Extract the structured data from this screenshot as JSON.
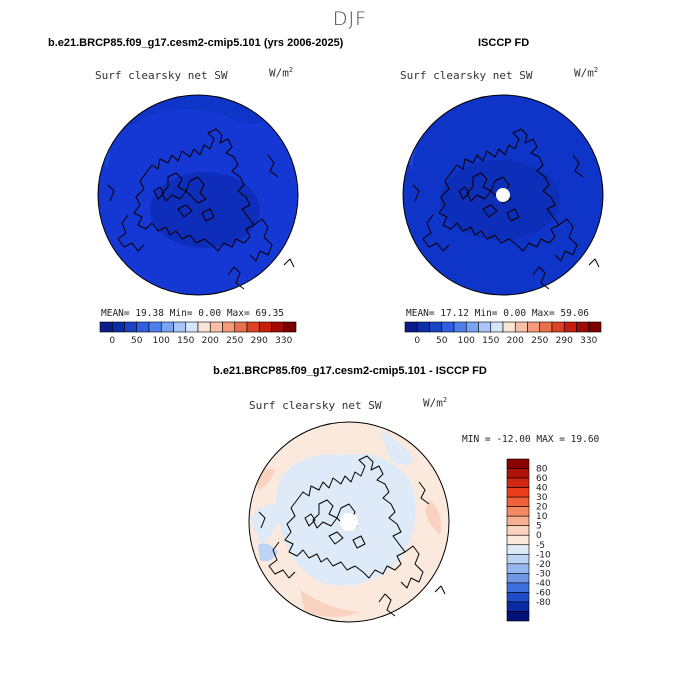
{
  "season": "DJF",
  "units_label": "W/m",
  "units_exp": "2",
  "panels": {
    "model": {
      "title": "b.e21.BRCP85.f09_g17.cesm2-cmip5.101 (yrs 2006-2025)",
      "subtitle": "Surf clearsky net SW",
      "stats": "MEAN=  19.38  Min=    0.00  Max=  69.35"
    },
    "obs": {
      "title": "ISCCP FD",
      "subtitle": "Surf clearsky net SW",
      "stats": "MEAN=  17.12  Min=    0.00  Max=  59.06"
    },
    "diff": {
      "title": "b.e21.BRCP85.f09_g17.cesm2-cmip5.101 - ISCCP FD",
      "subtitle": "Surf clearsky net SW",
      "stats": "MIN = -12.00  MAX =  19.60"
    }
  },
  "chart_data": [
    {
      "type": "heatmap",
      "title": "b.e21.BRCP85.f09_g17.cesm2-cmip5.101 (yrs 2006-2025)",
      "subtitle": "Surf clearsky net SW",
      "units": "W/m2",
      "projection": "polar stereographic (north)",
      "mean": 19.38,
      "min": 0.0,
      "max": 69.35,
      "colorbar_ticks": [
        "0",
        "50",
        "100",
        "150",
        "200",
        "250",
        "290",
        "330"
      ],
      "colorbar_colors": [
        "#0b1c8a",
        "#0b2ea8",
        "#1a43c6",
        "#2f5ee0",
        "#4f7fed",
        "#7aa3f3",
        "#a8c6f8",
        "#d5e6fb",
        "#fbe3d5",
        "#f8c0a6",
        "#f29a7a",
        "#ea6f4e",
        "#de4326",
        "#c61e0c",
        "#a10b05",
        "#7a0000"
      ],
      "dominant_color": "#0f34c8"
    },
    {
      "type": "heatmap",
      "title": "ISCCP FD",
      "subtitle": "Surf clearsky net SW",
      "units": "W/m2",
      "projection": "polar stereographic (north)",
      "mean": 17.12,
      "min": 0.0,
      "max": 59.06,
      "colorbar_ticks": [
        "0",
        "50",
        "100",
        "150",
        "200",
        "250",
        "290",
        "330"
      ],
      "dominant_color": "#0f34c8",
      "missing_at_pole": true
    },
    {
      "type": "heatmap",
      "title": "b.e21.BRCP85.f09_g17.cesm2-cmip5.101 - ISCCP FD",
      "subtitle": "Surf clearsky net SW",
      "units": "W/m2",
      "projection": "polar stereographic (north)",
      "min": -12.0,
      "max": 19.6,
      "colorbar_orientation": "vertical",
      "colorbar_ticks": [
        "80",
        "60",
        "40",
        "30",
        "20",
        "10",
        "5",
        "0",
        "-5",
        "-10",
        "-20",
        "-30",
        "-40",
        "-60",
        "-80"
      ],
      "colorbar_colors": [
        "#8b0000",
        "#b01106",
        "#d22712",
        "#ea3d1c",
        "#f3613a",
        "#f58a62",
        "#f7b091",
        "#f9d3bf",
        "#fbe9dd",
        "#deeaf8",
        "#bcd3f3",
        "#96b7ee",
        "#6e97e6",
        "#3f6fde",
        "#1f4cc9",
        "#0a2ba6",
        "#00127a"
      ]
    }
  ]
}
